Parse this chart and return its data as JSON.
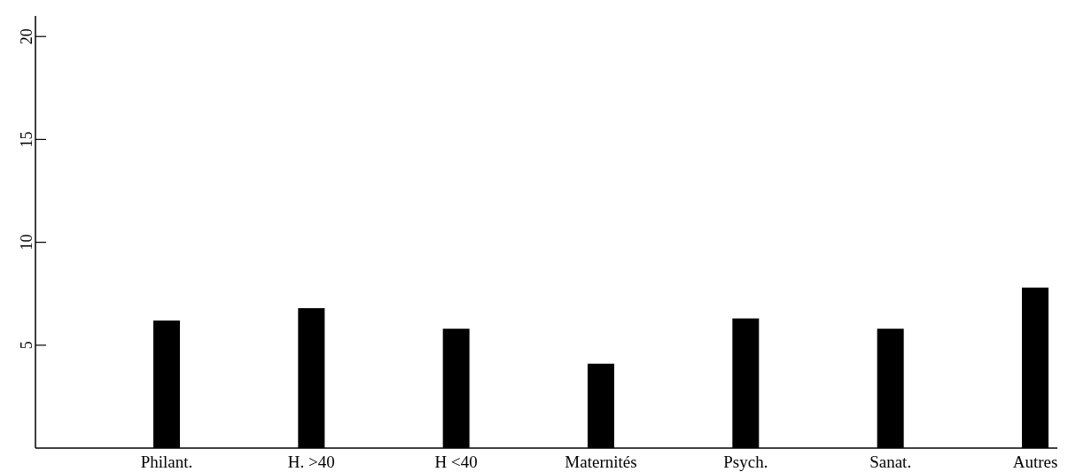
{
  "chart_data": {
    "type": "bar",
    "categories": [
      "Philant.",
      "H. >40",
      "H <40",
      "Maternités",
      "Psych.",
      "Sanat.",
      "Autres"
    ],
    "values": [
      6.2,
      6.8,
      5.8,
      4.1,
      6.3,
      5.8,
      7.8
    ],
    "color": "#000000",
    "ylim": [
      0,
      21
    ],
    "yticks": [
      5,
      10,
      15,
      20
    ],
    "grid": false
  }
}
